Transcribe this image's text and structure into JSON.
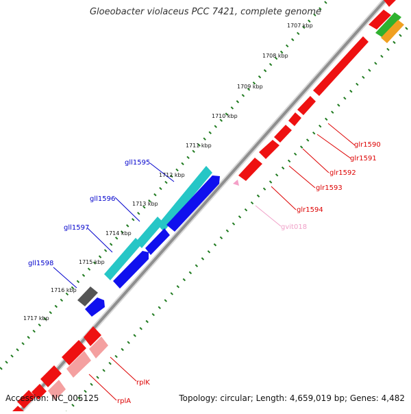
{
  "title": "Gloeobacter violaceus PCC 7421, complete genome",
  "footer": {
    "accession": "Accession: NC_005125",
    "topology": "Topology: circular; Length: 4,659,019 bp; Genes: 4,482"
  },
  "colors": {
    "backbone": "#8f8f8f",
    "ticks": "#1f7a1f",
    "forward_gene": "#1010ee",
    "reverse_gene": "#ee1111",
    "cds_cyan": "#26c6c6",
    "cds_gray": "#555555",
    "rna_pink": "#f4a0a0",
    "label_blue": "#0000cc",
    "label_red": "#dd0000",
    "label_pink": "#f0a0c8"
  },
  "scale_labels": [
    "1707 kbp",
    "1708 kbp",
    "1709 kbp",
    "1710 kbp",
    "1711 kbp",
    "1712 kbp",
    "1713 kbp",
    "1714 kbp",
    "1715 kbp",
    "1716 kbp",
    "1717 kbp"
  ],
  "gene_labels_left": [
    "gll1595",
    "gll1596",
    "gll1597",
    "gll1598"
  ],
  "gene_labels_right": [
    "glr1590",
    "glr1591",
    "glr1592",
    "glr1593",
    "glr1594",
    "gvit018",
    "rplK",
    "rplA"
  ]
}
